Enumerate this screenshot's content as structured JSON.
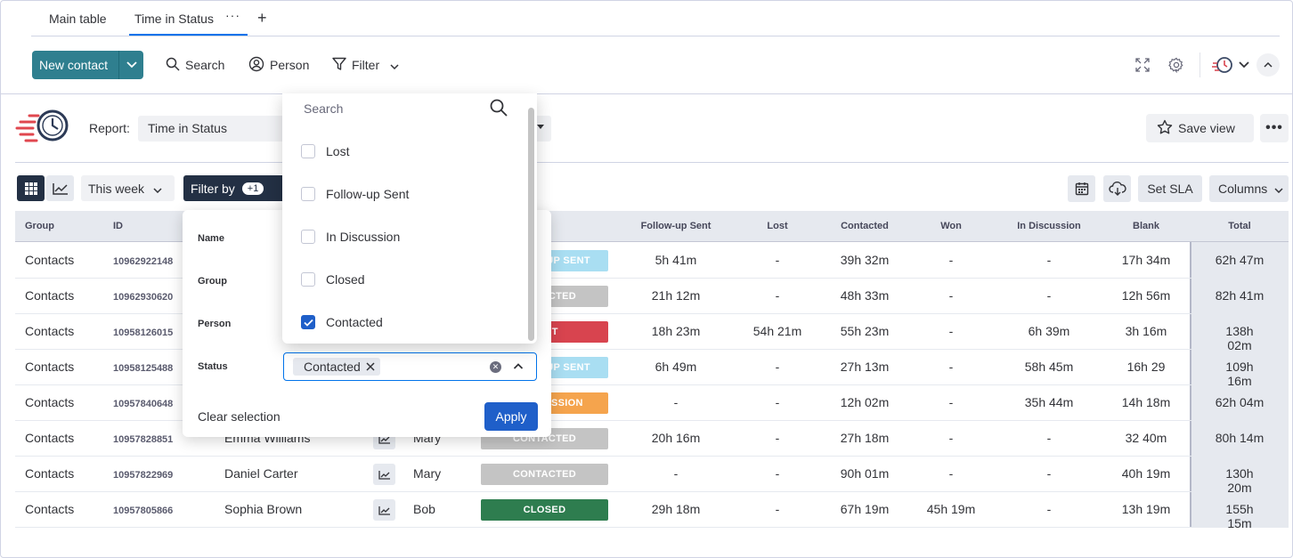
{
  "tabs": {
    "main": "Main table",
    "active": "Time in Status",
    "more": "···",
    "add": "+"
  },
  "toolbar": {
    "new_contact": "New contact",
    "search": "Search",
    "person": "Person",
    "filter": "Filter"
  },
  "report": {
    "label": "Report:",
    "value": "Time in Status",
    "save_view": "Save view",
    "more": "•••"
  },
  "controls": {
    "period": "This week",
    "filter_by": "Filter by",
    "filter_count": "+1",
    "set_sla": "Set SLA",
    "columns": "Columns"
  },
  "table": {
    "headers": {
      "group": "Group",
      "id": "ID",
      "follow_up": "Follow-up Sent",
      "lost": "Lost",
      "contacted": "Contacted",
      "won": "Won",
      "in_discussion": "In Discussion",
      "blank": "Blank",
      "total": "Total"
    },
    "rows": [
      {
        "group": "Contacts",
        "id": "10962922148",
        "name": "",
        "person": "",
        "status": "FOLLOW-UP SENT",
        "follow_up": "5h 41m",
        "lost": "-",
        "contacted": "39h 32m",
        "won": "-",
        "in_discussion": "-",
        "blank": "17h 34m",
        "total": "62h 47m"
      },
      {
        "group": "Contacts",
        "id": "10962930620",
        "name": "",
        "person": "",
        "status": "CONTACTED",
        "follow_up": "21h 12m",
        "lost": "-",
        "contacted": "48h 33m",
        "won": "-",
        "in_discussion": "-",
        "blank": "12h 56m",
        "total": "82h 41m"
      },
      {
        "group": "Contacts",
        "id": "10958126015",
        "name": "",
        "person": "",
        "status": "LOST",
        "follow_up": "18h 23m",
        "lost": "54h 21m",
        "contacted": "55h 23m",
        "won": "-",
        "in_discussion": "6h 39m",
        "blank": "3h 16m",
        "total": "138h 02m"
      },
      {
        "group": "Contacts",
        "id": "10958125488",
        "name": "",
        "person": "",
        "status": "FOLLOW-UP SENT",
        "follow_up": "6h 49m",
        "lost": "-",
        "contacted": "27h 13m",
        "won": "-",
        "in_discussion": "58h 45m",
        "blank": "16h 29",
        "total": "109h 16m"
      },
      {
        "group": "Contacts",
        "id": "10957840648",
        "name": "",
        "person": "",
        "status": "IN DISCUSSION",
        "follow_up": "-",
        "lost": "-",
        "contacted": "12h 02m",
        "won": "-",
        "in_discussion": "35h 44m",
        "blank": "14h 18m",
        "total": "62h 04m"
      },
      {
        "group": "Contacts",
        "id": "10957828851",
        "name": "Emma Williams",
        "person": "Mary",
        "status": "CONTACTED",
        "follow_up": "20h 16m",
        "lost": "-",
        "contacted": "27h 18m",
        "won": "-",
        "in_discussion": "-",
        "blank": "32 40m",
        "total": "80h 14m"
      },
      {
        "group": "Contacts",
        "id": "10957822969",
        "name": "Daniel Carter",
        "person": "Mary",
        "status": "CONTACTED",
        "follow_up": "-",
        "lost": "-",
        "contacted": "90h 01m",
        "won": "-",
        "in_discussion": "-",
        "blank": "40h 19m",
        "total": "130h 20m"
      },
      {
        "group": "Contacts",
        "id": "10957805866",
        "name": "Sophia Brown",
        "person": "Bob",
        "status": "CLOSED",
        "follow_up": "29h 18m",
        "lost": "-",
        "contacted": "67h 19m",
        "won": "45h 19m",
        "in_discussion": "-",
        "blank": "13h 19m",
        "total": "155h 15m"
      }
    ]
  },
  "status_colors": {
    "FOLLOW-UP SENT": "#a9def2",
    "CONTACTED": "#c4c4c4",
    "LOST": "#d8444f",
    "IN DISCUSSION": "#f5a44d",
    "CLOSED": "#2e7d4f"
  },
  "filter_panel": {
    "name_label": "Name",
    "group_label": "Group",
    "person_label": "Person",
    "status_label": "Status",
    "status_chip": "Contacted",
    "clear_selection": "Clear selection",
    "apply": "Apply"
  },
  "dropdown": {
    "search_placeholder": "Search",
    "options": [
      {
        "label": "Lost",
        "checked": false
      },
      {
        "label": "Follow-up Sent",
        "checked": false
      },
      {
        "label": "In Discussion",
        "checked": false
      },
      {
        "label": "Closed",
        "checked": false
      },
      {
        "label": "Contacted",
        "checked": true
      }
    ]
  }
}
